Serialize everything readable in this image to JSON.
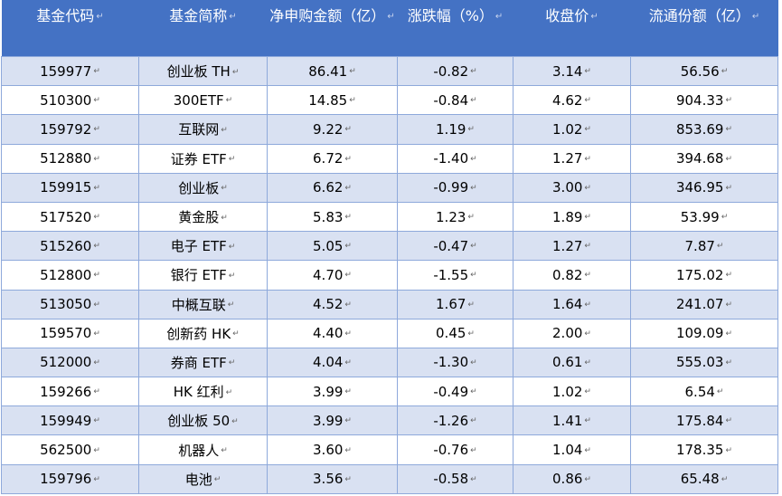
{
  "table": {
    "headers": [
      "基金代码",
      "基金简称",
      "净申购金额（亿）",
      "涨跌幅（%）",
      "收盘价",
      "流通份额（亿）"
    ],
    "rows": [
      [
        "159977",
        "创业板 TH",
        "86.41",
        "-0.82",
        "3.14",
        "56.56"
      ],
      [
        "510300",
        "300ETF",
        "14.85",
        "-0.84",
        "4.62",
        "904.33"
      ],
      [
        "159792",
        "互联网",
        "9.22",
        "1.19",
        "1.02",
        "853.69"
      ],
      [
        "512880",
        "证券 ETF",
        "6.72",
        "-1.40",
        "1.27",
        "394.68"
      ],
      [
        "159915",
        "创业板",
        "6.62",
        "-0.99",
        "3.00",
        "346.95"
      ],
      [
        "517520",
        "黄金股",
        "5.83",
        "1.23",
        "1.89",
        "53.99"
      ],
      [
        "515260",
        "电子 ETF",
        "5.05",
        "-0.47",
        "1.27",
        "7.87"
      ],
      [
        "512800",
        "银行 ETF",
        "4.70",
        "-1.55",
        "0.82",
        "175.02"
      ],
      [
        "513050",
        "中概互联",
        "4.52",
        "1.67",
        "1.64",
        "241.07"
      ],
      [
        "159570",
        "创新药 HK",
        "4.40",
        "0.45",
        "2.00",
        "109.09"
      ],
      [
        "512000",
        "券商 ETF",
        "4.04",
        "-1.30",
        "0.61",
        "555.03"
      ],
      [
        "159266",
        "HK 红利",
        "3.99",
        "-0.49",
        "1.02",
        "6.54"
      ],
      [
        "159949",
        "创业板 50",
        "3.99",
        "-1.26",
        "1.41",
        "175.84"
      ],
      [
        "562500",
        "机器人",
        "3.60",
        "-0.76",
        "1.04",
        "178.35"
      ],
      [
        "159796",
        "电池",
        "3.56",
        "-0.58",
        "0.86",
        "65.48"
      ]
    ]
  }
}
